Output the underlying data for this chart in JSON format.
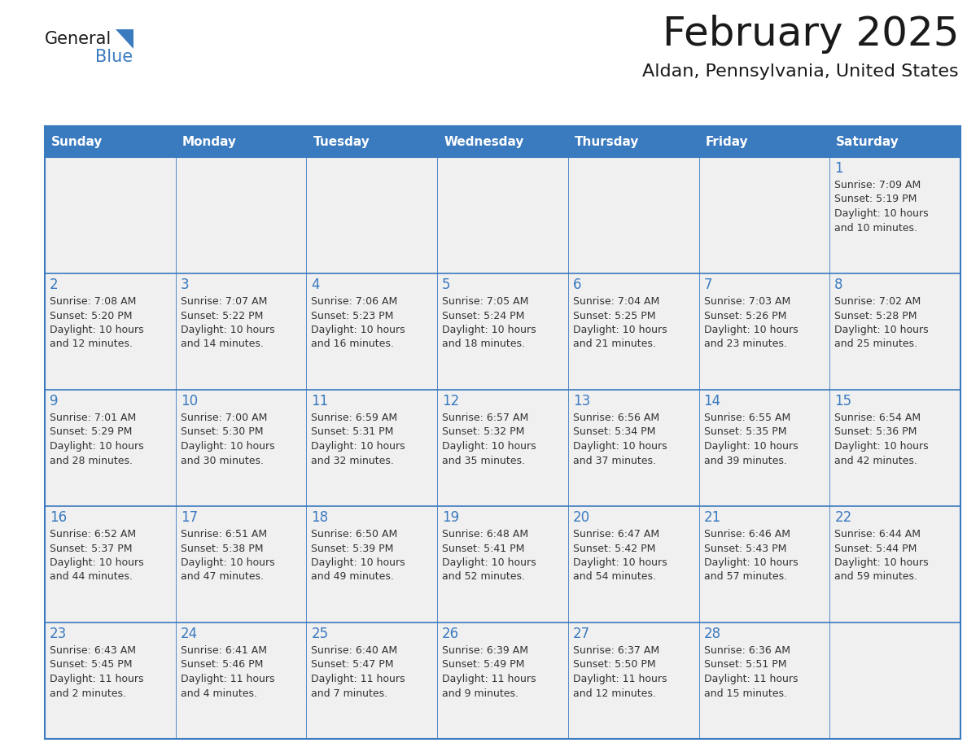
{
  "title": "February 2025",
  "subtitle": "Aldan, Pennsylvania, United States",
  "header_color": "#3a7abf",
  "header_text_color": "#ffffff",
  "cell_bg": "#f0f0f0",
  "border_color": "#3a7abf",
  "day_headers": [
    "Sunday",
    "Monday",
    "Tuesday",
    "Wednesday",
    "Thursday",
    "Friday",
    "Saturday"
  ],
  "title_color": "#1a1a1a",
  "subtitle_color": "#1a1a1a",
  "day_num_color": "#3a7abf",
  "cell_text_color": "#333333",
  "logo_general_color": "#1a1a1a",
  "logo_blue_color": "#3a7abf",
  "weeks": [
    [
      null,
      null,
      null,
      null,
      null,
      null,
      {
        "day": "1",
        "sunrise": "7:09 AM",
        "sunset": "5:19 PM",
        "daylight": "10 hours",
        "daylight2": "and 10 minutes."
      }
    ],
    [
      {
        "day": "2",
        "sunrise": "7:08 AM",
        "sunset": "5:20 PM",
        "daylight": "10 hours",
        "daylight2": "and 12 minutes."
      },
      {
        "day": "3",
        "sunrise": "7:07 AM",
        "sunset": "5:22 PM",
        "daylight": "10 hours",
        "daylight2": "and 14 minutes."
      },
      {
        "day": "4",
        "sunrise": "7:06 AM",
        "sunset": "5:23 PM",
        "daylight": "10 hours",
        "daylight2": "and 16 minutes."
      },
      {
        "day": "5",
        "sunrise": "7:05 AM",
        "sunset": "5:24 PM",
        "daylight": "10 hours",
        "daylight2": "and 18 minutes."
      },
      {
        "day": "6",
        "sunrise": "7:04 AM",
        "sunset": "5:25 PM",
        "daylight": "10 hours",
        "daylight2": "and 21 minutes."
      },
      {
        "day": "7",
        "sunrise": "7:03 AM",
        "sunset": "5:26 PM",
        "daylight": "10 hours",
        "daylight2": "and 23 minutes."
      },
      {
        "day": "8",
        "sunrise": "7:02 AM",
        "sunset": "5:28 PM",
        "daylight": "10 hours",
        "daylight2": "and 25 minutes."
      }
    ],
    [
      {
        "day": "9",
        "sunrise": "7:01 AM",
        "sunset": "5:29 PM",
        "daylight": "10 hours",
        "daylight2": "and 28 minutes."
      },
      {
        "day": "10",
        "sunrise": "7:00 AM",
        "sunset": "5:30 PM",
        "daylight": "10 hours",
        "daylight2": "and 30 minutes."
      },
      {
        "day": "11",
        "sunrise": "6:59 AM",
        "sunset": "5:31 PM",
        "daylight": "10 hours",
        "daylight2": "and 32 minutes."
      },
      {
        "day": "12",
        "sunrise": "6:57 AM",
        "sunset": "5:32 PM",
        "daylight": "10 hours",
        "daylight2": "and 35 minutes."
      },
      {
        "day": "13",
        "sunrise": "6:56 AM",
        "sunset": "5:34 PM",
        "daylight": "10 hours",
        "daylight2": "and 37 minutes."
      },
      {
        "day": "14",
        "sunrise": "6:55 AM",
        "sunset": "5:35 PM",
        "daylight": "10 hours",
        "daylight2": "and 39 minutes."
      },
      {
        "day": "15",
        "sunrise": "6:54 AM",
        "sunset": "5:36 PM",
        "daylight": "10 hours",
        "daylight2": "and 42 minutes."
      }
    ],
    [
      {
        "day": "16",
        "sunrise": "6:52 AM",
        "sunset": "5:37 PM",
        "daylight": "10 hours",
        "daylight2": "and 44 minutes."
      },
      {
        "day": "17",
        "sunrise": "6:51 AM",
        "sunset": "5:38 PM",
        "daylight": "10 hours",
        "daylight2": "and 47 minutes."
      },
      {
        "day": "18",
        "sunrise": "6:50 AM",
        "sunset": "5:39 PM",
        "daylight": "10 hours",
        "daylight2": "and 49 minutes."
      },
      {
        "day": "19",
        "sunrise": "6:48 AM",
        "sunset": "5:41 PM",
        "daylight": "10 hours",
        "daylight2": "and 52 minutes."
      },
      {
        "day": "20",
        "sunrise": "6:47 AM",
        "sunset": "5:42 PM",
        "daylight": "10 hours",
        "daylight2": "and 54 minutes."
      },
      {
        "day": "21",
        "sunrise": "6:46 AM",
        "sunset": "5:43 PM",
        "daylight": "10 hours",
        "daylight2": "and 57 minutes."
      },
      {
        "day": "22",
        "sunrise": "6:44 AM",
        "sunset": "5:44 PM",
        "daylight": "10 hours",
        "daylight2": "and 59 minutes."
      }
    ],
    [
      {
        "day": "23",
        "sunrise": "6:43 AM",
        "sunset": "5:45 PM",
        "daylight": "11 hours",
        "daylight2": "and 2 minutes."
      },
      {
        "day": "24",
        "sunrise": "6:41 AM",
        "sunset": "5:46 PM",
        "daylight": "11 hours",
        "daylight2": "and 4 minutes."
      },
      {
        "day": "25",
        "sunrise": "6:40 AM",
        "sunset": "5:47 PM",
        "daylight": "11 hours",
        "daylight2": "and 7 minutes."
      },
      {
        "day": "26",
        "sunrise": "6:39 AM",
        "sunset": "5:49 PM",
        "daylight": "11 hours",
        "daylight2": "and 9 minutes."
      },
      {
        "day": "27",
        "sunrise": "6:37 AM",
        "sunset": "5:50 PM",
        "daylight": "11 hours",
        "daylight2": "and 12 minutes."
      },
      {
        "day": "28",
        "sunrise": "6:36 AM",
        "sunset": "5:51 PM",
        "daylight": "11 hours",
        "daylight2": "and 15 minutes."
      },
      null
    ]
  ]
}
